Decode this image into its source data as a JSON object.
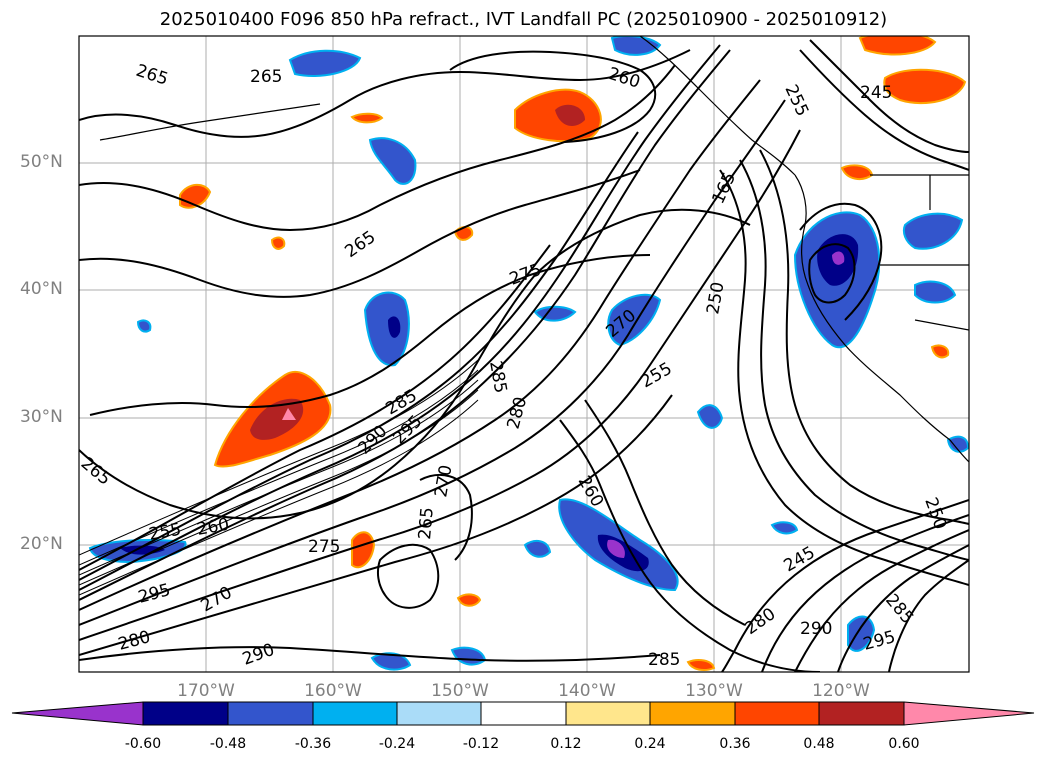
{
  "title": "2025010400 F096 850 hPa refract., IVT Landfall PC (2025010900 - 2025010912)",
  "map": {
    "projection": "PlateCarree",
    "lon_range": [
      -180,
      -110
    ],
    "lat_range": [
      10,
      60
    ],
    "lat_labels": [
      "50°N",
      "40°N",
      "30°N",
      "20°N"
    ],
    "lon_labels": [
      "170°W",
      "160°W",
      "150°W",
      "140°W",
      "130°W",
      "120°W"
    ],
    "gridlines": true,
    "contour_variable": "850 hPa refractivity",
    "contour_labels": [
      "265",
      "265",
      "260",
      "255",
      "245",
      "265",
      "275",
      "165",
      "250",
      "270",
      "285",
      "255",
      "285",
      "280",
      "290",
      "295",
      "270",
      "260",
      "265",
      "250",
      "245",
      "265",
      "255",
      "260",
      "275",
      "295",
      "270",
      "280",
      "290",
      "285",
      "295",
      "280",
      "290",
      "285"
    ],
    "fill_variable": "IVT Landfall PC"
  },
  "colorbar": {
    "ticks": [
      "-0.60",
      "-0.48",
      "-0.36",
      "-0.24",
      "-0.12",
      "0.12",
      "0.24",
      "0.36",
      "0.48",
      "0.60"
    ],
    "levels": [
      -0.6,
      -0.48,
      -0.36,
      -0.24,
      -0.12,
      0.12,
      0.24,
      0.36,
      0.48,
      0.6
    ],
    "colors": [
      "#9933cc",
      "#000088",
      "#3355cc",
      "#00b0f0",
      "#aadcf8",
      "#ffffff",
      "#ffe68c",
      "#ffa500",
      "#ff4500",
      "#b22222",
      "#ff88aa"
    ],
    "extend": "both"
  }
}
